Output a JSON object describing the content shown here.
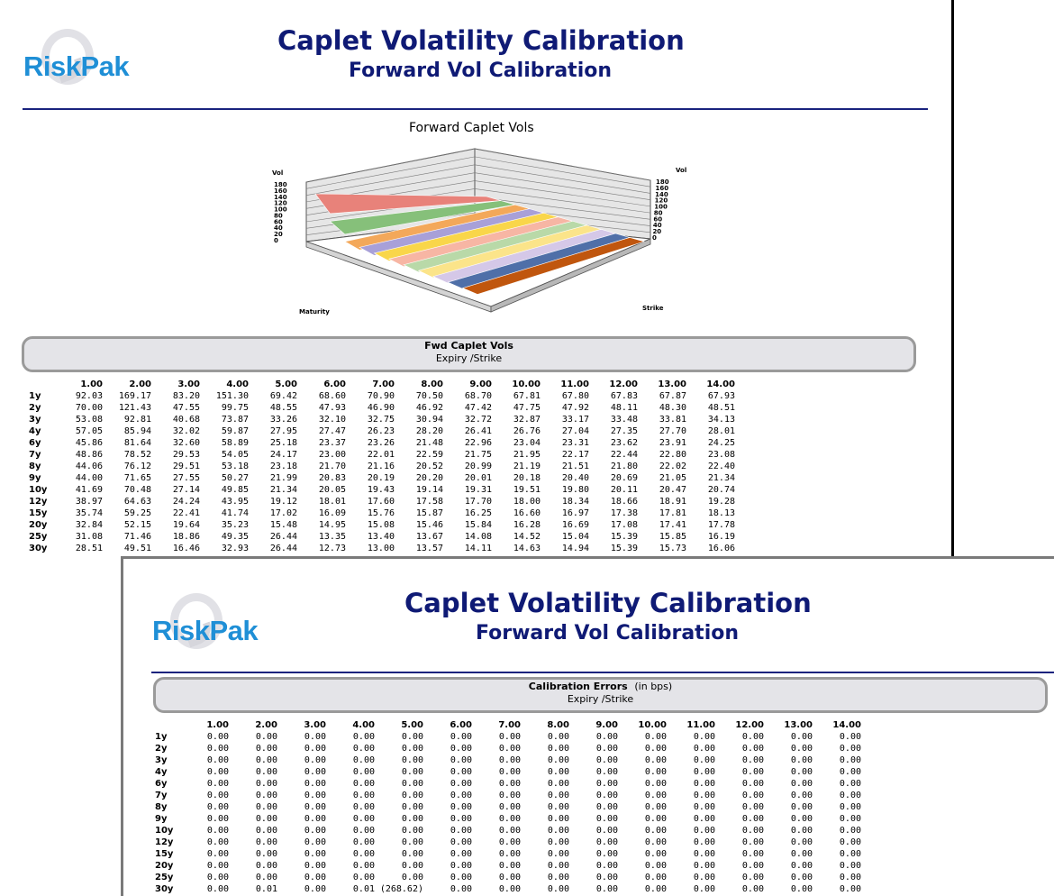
{
  "brand": {
    "logo_text": "RiskPak"
  },
  "report1": {
    "title": "Caplet Volatility Calibration",
    "subtitle": "Forward Vol Calibration",
    "chart": {
      "title": "Forward Caplet Vols",
      "z_label_left": "Vol",
      "z_label_right": "Vol",
      "x_label": "Maturity",
      "y_label": "Strike",
      "z_ticks": [
        "180",
        "160",
        "140",
        "120",
        "100",
        "80",
        "60",
        "40",
        "20",
        "0"
      ]
    },
    "panel_title": "Fwd Caplet Vols",
    "panel_subtitle": "Expiry /Strike",
    "columns": [
      "1.00",
      "2.00",
      "3.00",
      "4.00",
      "5.00",
      "6.00",
      "7.00",
      "8.00",
      "9.00",
      "10.00",
      "11.00",
      "12.00",
      "13.00",
      "14.00"
    ],
    "rows": [
      {
        "label": "1y",
        "values": [
          "92.03",
          "169.17",
          "83.20",
          "151.30",
          "69.42",
          "68.60",
          "70.90",
          "70.50",
          "68.70",
          "67.81",
          "67.80",
          "67.83",
          "67.87",
          "67.93"
        ]
      },
      {
        "label": "2y",
        "values": [
          "70.00",
          "121.43",
          "47.55",
          "99.75",
          "48.55",
          "47.93",
          "46.90",
          "46.92",
          "47.42",
          "47.75",
          "47.92",
          "48.11",
          "48.30",
          "48.51"
        ]
      },
      {
        "label": "3y",
        "values": [
          "53.08",
          "92.81",
          "40.68",
          "73.87",
          "33.26",
          "32.10",
          "32.75",
          "30.94",
          "32.72",
          "32.87",
          "33.17",
          "33.48",
          "33.81",
          "34.13"
        ]
      },
      {
        "label": "4y",
        "values": [
          "57.05",
          "85.94",
          "32.02",
          "59.87",
          "27.95",
          "27.47",
          "26.23",
          "28.20",
          "26.41",
          "26.76",
          "27.04",
          "27.35",
          "27.70",
          "28.01"
        ]
      },
      {
        "label": "6y",
        "values": [
          "45.86",
          "81.64",
          "32.60",
          "58.89",
          "25.18",
          "23.37",
          "23.26",
          "21.48",
          "22.96",
          "23.04",
          "23.31",
          "23.62",
          "23.91",
          "24.25"
        ]
      },
      {
        "label": "7y",
        "values": [
          "48.86",
          "78.52",
          "29.53",
          "54.05",
          "24.17",
          "23.00",
          "22.01",
          "22.59",
          "21.75",
          "21.95",
          "22.17",
          "22.44",
          "22.80",
          "23.08"
        ]
      },
      {
        "label": "8y",
        "values": [
          "44.06",
          "76.12",
          "29.51",
          "53.18",
          "23.18",
          "21.70",
          "21.16",
          "20.52",
          "20.99",
          "21.19",
          "21.51",
          "21.80",
          "22.02",
          "22.40"
        ]
      },
      {
        "label": "9y",
        "values": [
          "44.00",
          "71.65",
          "27.55",
          "50.27",
          "21.99",
          "20.83",
          "20.19",
          "20.20",
          "20.01",
          "20.18",
          "20.40",
          "20.69",
          "21.05",
          "21.34"
        ]
      },
      {
        "label": "10y",
        "values": [
          "41.69",
          "70.48",
          "27.14",
          "49.85",
          "21.34",
          "20.05",
          "19.43",
          "19.14",
          "19.31",
          "19.51",
          "19.80",
          "20.11",
          "20.47",
          "20.74"
        ]
      },
      {
        "label": "12y",
        "values": [
          "38.97",
          "64.63",
          "24.24",
          "43.95",
          "19.12",
          "18.01",
          "17.60",
          "17.58",
          "17.70",
          "18.00",
          "18.34",
          "18.66",
          "18.91",
          "19.28"
        ]
      },
      {
        "label": "15y",
        "values": [
          "35.74",
          "59.25",
          "22.41",
          "41.74",
          "17.02",
          "16.09",
          "15.76",
          "15.87",
          "16.25",
          "16.60",
          "16.97",
          "17.38",
          "17.81",
          "18.13"
        ]
      },
      {
        "label": "20y",
        "values": [
          "32.84",
          "52.15",
          "19.64",
          "35.23",
          "15.48",
          "14.95",
          "15.08",
          "15.46",
          "15.84",
          "16.28",
          "16.69",
          "17.08",
          "17.41",
          "17.78"
        ]
      },
      {
        "label": "25y",
        "values": [
          "31.08",
          "71.46",
          "18.86",
          "49.35",
          "26.44",
          "13.35",
          "13.40",
          "13.67",
          "14.08",
          "14.52",
          "15.04",
          "15.39",
          "15.85",
          "16.19"
        ]
      },
      {
        "label": "30y",
        "values": [
          "28.51",
          "49.51",
          "16.46",
          "32.93",
          "26.44",
          "12.73",
          "13.00",
          "13.57",
          "14.11",
          "14.63",
          "14.94",
          "15.39",
          "15.73",
          "16.06"
        ]
      }
    ]
  },
  "report2": {
    "title": "Caplet Volatility Calibration",
    "subtitle": "Forward Vol Calibration",
    "panel_title": "Calibration Errors",
    "panel_unit": "(in bps)",
    "panel_subtitle": "Expiry /Strike",
    "columns": [
      "1.00",
      "2.00",
      "3.00",
      "4.00",
      "5.00",
      "6.00",
      "7.00",
      "8.00",
      "9.00",
      "10.00",
      "11.00",
      "12.00",
      "13.00",
      "14.00"
    ],
    "rows": [
      {
        "label": "1y",
        "values": [
          "0.00",
          "0.00",
          "0.00",
          "0.00",
          "0.00",
          "0.00",
          "0.00",
          "0.00",
          "0.00",
          "0.00",
          "0.00",
          "0.00",
          "0.00",
          "0.00"
        ]
      },
      {
        "label": "2y",
        "values": [
          "0.00",
          "0.00",
          "0.00",
          "0.00",
          "0.00",
          "0.00",
          "0.00",
          "0.00",
          "0.00",
          "0.00",
          "0.00",
          "0.00",
          "0.00",
          "0.00"
        ]
      },
      {
        "label": "3y",
        "values": [
          "0.00",
          "0.00",
          "0.00",
          "0.00",
          "0.00",
          "0.00",
          "0.00",
          "0.00",
          "0.00",
          "0.00",
          "0.00",
          "0.00",
          "0.00",
          "0.00"
        ]
      },
      {
        "label": "4y",
        "values": [
          "0.00",
          "0.00",
          "0.00",
          "0.00",
          "0.00",
          "0.00",
          "0.00",
          "0.00",
          "0.00",
          "0.00",
          "0.00",
          "0.00",
          "0.00",
          "0.00"
        ]
      },
      {
        "label": "6y",
        "values": [
          "0.00",
          "0.00",
          "0.00",
          "0.00",
          "0.00",
          "0.00",
          "0.00",
          "0.00",
          "0.00",
          "0.00",
          "0.00",
          "0.00",
          "0.00",
          "0.00"
        ]
      },
      {
        "label": "7y",
        "values": [
          "0.00",
          "0.00",
          "0.00",
          "0.00",
          "0.00",
          "0.00",
          "0.00",
          "0.00",
          "0.00",
          "0.00",
          "0.00",
          "0.00",
          "0.00",
          "0.00"
        ]
      },
      {
        "label": "8y",
        "values": [
          "0.00",
          "0.00",
          "0.00",
          "0.00",
          "0.00",
          "0.00",
          "0.00",
          "0.00",
          "0.00",
          "0.00",
          "0.00",
          "0.00",
          "0.00",
          "0.00"
        ]
      },
      {
        "label": "9y",
        "values": [
          "0.00",
          "0.00",
          "0.00",
          "0.00",
          "0.00",
          "0.00",
          "0.00",
          "0.00",
          "0.00",
          "0.00",
          "0.00",
          "0.00",
          "0.00",
          "0.00"
        ]
      },
      {
        "label": "10y",
        "values": [
          "0.00",
          "0.00",
          "0.00",
          "0.00",
          "0.00",
          "0.00",
          "0.00",
          "0.00",
          "0.00",
          "0.00",
          "0.00",
          "0.00",
          "0.00",
          "0.00"
        ]
      },
      {
        "label": "12y",
        "values": [
          "0.00",
          "0.00",
          "0.00",
          "0.00",
          "0.00",
          "0.00",
          "0.00",
          "0.00",
          "0.00",
          "0.00",
          "0.00",
          "0.00",
          "0.00",
          "0.00"
        ]
      },
      {
        "label": "15y",
        "values": [
          "0.00",
          "0.00",
          "0.00",
          "0.00",
          "0.00",
          "0.00",
          "0.00",
          "0.00",
          "0.00",
          "0.00",
          "0.00",
          "0.00",
          "0.00",
          "0.00"
        ]
      },
      {
        "label": "20y",
        "values": [
          "0.00",
          "0.00",
          "0.00",
          "0.00",
          "0.00",
          "0.00",
          "0.00",
          "0.00",
          "0.00",
          "0.00",
          "0.00",
          "0.00",
          "0.00",
          "0.00"
        ]
      },
      {
        "label": "25y",
        "values": [
          "0.00",
          "0.00",
          "0.00",
          "0.00",
          "0.00",
          "0.00",
          "0.00",
          "0.00",
          "0.00",
          "0.00",
          "0.00",
          "0.00",
          "0.00",
          "0.00"
        ]
      },
      {
        "label": "30y",
        "values": [
          "0.00",
          "0.01",
          "0.00",
          "0.01",
          "(268.62)",
          "0.00",
          "0.00",
          "0.00",
          "0.00",
          "0.00",
          "0.00",
          "0.00",
          "0.00",
          "0.00"
        ]
      }
    ]
  },
  "colors": {
    "title": "#0f1a75",
    "logo": "#1f8fd6",
    "rule": "#1a237e",
    "panel_fill": "#e4e4e8",
    "panel_border": "#9a9a9a",
    "surface_bands": [
      "#e8827a",
      "#86c07a",
      "#f3a85a",
      "#a8a0d8",
      "#f9d64a",
      "#f7b6a4",
      "#b9d9a8",
      "#fbe48a",
      "#d5c8e8",
      "#4f6fa8",
      "#c0560e"
    ]
  }
}
